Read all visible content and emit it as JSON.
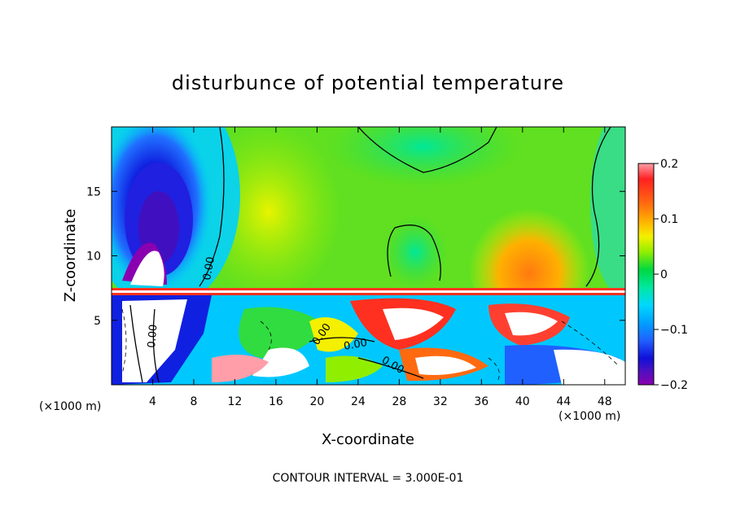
{
  "chart_data": {
    "type": "heatmap",
    "title": "disturbunce of potential temperature",
    "xlabel": "X-coordinate",
    "ylabel": "Z-coordinate",
    "x_unit_left": "(×1000 m)",
    "x_unit_right": "(×1000 m)",
    "xlim": [
      0,
      50
    ],
    "ylim": [
      0,
      20
    ],
    "x_ticks": [
      4,
      8,
      12,
      16,
      20,
      24,
      28,
      32,
      36,
      40,
      44,
      48
    ],
    "y_ticks": [
      5,
      10,
      15
    ],
    "colorbar": {
      "min": -0.2,
      "max": 0.2,
      "tick_values": [
        0.2,
        0.1,
        0,
        -0.1,
        -0.2
      ],
      "tick_labels": [
        "0.2",
        "0.1",
        "0",
        "−0.1",
        "−0.2"
      ]
    },
    "contour_labels": [
      "0.00",
      "0.00",
      "0.00",
      "0.00",
      "0.00"
    ],
    "footer": "CONTOUR INTERVAL = 3.000E-01"
  }
}
